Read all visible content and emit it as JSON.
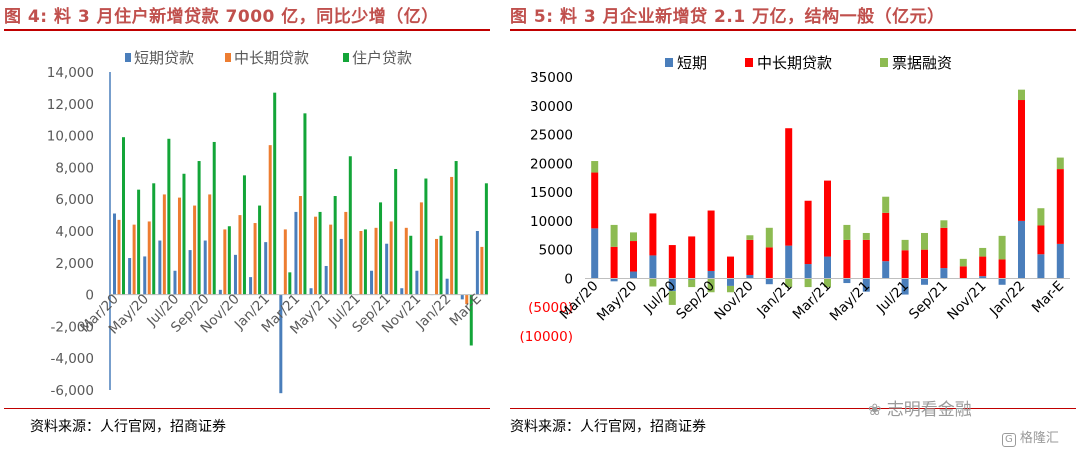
{
  "left": {
    "title": "图 4: 料 3 月住户新增贷款 7000 亿，同比少增（亿）",
    "source": "资料来源：人行官网，招商证券"
  },
  "right": {
    "title": "图 5: 料 3 月企业新增贷 2.1 万亿，结构一般（亿元）",
    "source": "资料来源：人行官网，招商证券"
  },
  "watermark": {
    "main": "志明看金融",
    "corner": "格隆汇"
  },
  "colors": {
    "short": "#4a7ebb",
    "long_left": "#ed7d31",
    "household": "#13a538",
    "long_right": "#ff0000",
    "bill": "#8dbb52",
    "title_red": "#c0504d",
    "rule": "#c00000"
  },
  "chart_data": [
    {
      "type": "bar",
      "title": "图 4: 料 3 月住户新增贷款 7000 亿，同比少增（亿）",
      "categories": [
        "Mar/20",
        "Apr/20",
        "May/20",
        "Jun/20",
        "Jul/20",
        "Aug/20",
        "Sep/20",
        "Oct/20",
        "Nov/20",
        "Dec/20",
        "Jan/21",
        "Feb/21",
        "Mar/21",
        "Apr/21",
        "May/21",
        "Jun/21",
        "Jul/21",
        "Aug/21",
        "Sep/21",
        "Oct/21",
        "Nov/21",
        "Dec/21",
        "Jan/22",
        "Feb/22",
        "Mar-E"
      ],
      "x_tick_labels": [
        "Mar/20",
        "May/20",
        "Jul/20",
        "Sep/20",
        "Nov/20",
        "Jan/21",
        "Mar/21",
        "May/21",
        "Jul/21",
        "Sep/21",
        "Nov/21",
        "Jan/22",
        "Mar-E"
      ],
      "ylim": [
        -6000,
        14000
      ],
      "y_tick_labels": [
        "-6,000",
        "-4,000",
        "-2,000",
        "0",
        "2,000",
        "4,000",
        "6,000",
        "8,000",
        "10,000",
        "12,000",
        "14,000"
      ],
      "y_ticks": [
        -6000,
        -4000,
        -2000,
        0,
        2000,
        4000,
        6000,
        8000,
        10000,
        12000,
        14000
      ],
      "grid": false,
      "legend_position": "top",
      "series": [
        {
          "name": "短期贷款",
          "color": "#4a7ebb",
          "values": [
            5100,
            2300,
            2400,
            3400,
            1500,
            2800,
            3400,
            300,
            2500,
            1100,
            3300,
            -6200,
            5200,
            400,
            1800,
            3500,
            0,
            1500,
            3200,
            400,
            1500,
            0,
            1000,
            -300,
            4000
          ]
        },
        {
          "name": "中长期贷款",
          "color": "#ed7d31",
          "values": [
            4700,
            4400,
            4600,
            6300,
            6100,
            5600,
            6300,
            4100,
            5000,
            4500,
            9400,
            4100,
            6200,
            4900,
            4400,
            5200,
            4000,
            4200,
            4600,
            4200,
            5800,
            3500,
            7400,
            -600,
            3000
          ]
        },
        {
          "name": "住户贷款",
          "color": "#13a538",
          "values": [
            9900,
            6600,
            7000,
            9800,
            7600,
            8400,
            9600,
            4300,
            7500,
            5600,
            12700,
            1400,
            11400,
            5200,
            6200,
            8700,
            4100,
            5800,
            7900,
            3700,
            7300,
            3700,
            8400,
            -3200,
            7000
          ]
        }
      ]
    },
    {
      "type": "bar",
      "stacked": true,
      "title": "图 5: 料 3 月企业新增贷 2.1 万亿，结构一般（亿元）",
      "categories": [
        "Mar/20",
        "Apr/20",
        "May/20",
        "Jun/20",
        "Jul/20",
        "Aug/20",
        "Sep/20",
        "Oct/20",
        "Nov/20",
        "Dec/20",
        "Jan/21",
        "Feb/21",
        "Mar/21",
        "Apr/21",
        "May/21",
        "Jun/21",
        "Jul/21",
        "Aug/21",
        "Sep/21",
        "Oct/21",
        "Nov/21",
        "Dec/21",
        "Jan/22",
        "Feb/22",
        "Mar-E"
      ],
      "x_tick_labels": [
        "Mar/20",
        "May/20",
        "Jul/20",
        "Sep/20",
        "Nov/20",
        "Jan/21",
        "Mar/21",
        "May/21",
        "Jul/21",
        "Sep/21",
        "Nov/21",
        "Jan/22",
        "Mar-E"
      ],
      "ylim": [
        -10000,
        35000
      ],
      "y_tick_labels": [
        "(10000)",
        "(5000)",
        "0",
        "5000",
        "10000",
        "15000",
        "20000",
        "25000",
        "30000",
        "35000"
      ],
      "y_ticks": [
        -10000,
        -5000,
        0,
        5000,
        10000,
        15000,
        20000,
        25000,
        30000,
        35000
      ],
      "grid": false,
      "legend_position": "top",
      "series": [
        {
          "name": "短期",
          "color": "#4a7ebb",
          "values": [
            8700,
            -500,
            1200,
            4000,
            -2200,
            -200,
            1300,
            -1300,
            600,
            -1000,
            5700,
            2500,
            3800,
            -800,
            -2300,
            3000,
            -2800,
            -1100,
            1800,
            -100,
            400,
            -1100,
            10000,
            4200,
            6000
          ]
        },
        {
          "name": "中长期贷款",
          "color": "#ff0000",
          "values": [
            9700,
            5500,
            5300,
            7300,
            5800,
            7300,
            10500,
            3800,
            6100,
            5400,
            20400,
            11000,
            13200,
            6700,
            6700,
            8400,
            4900,
            5000,
            7000,
            2100,
            3400,
            3300,
            21000,
            5000,
            13000
          ]
        },
        {
          "name": "票据融资",
          "color": "#8dbb52",
          "values": [
            2000,
            3800,
            1500,
            -1400,
            -2400,
            -1300,
            -2400,
            -1100,
            800,
            3400,
            -1500,
            -1500,
            -1500,
            2600,
            1200,
            2800,
            1800,
            2900,
            1300,
            1300,
            1500,
            4100,
            1800,
            3000,
            2000
          ]
        }
      ]
    }
  ]
}
